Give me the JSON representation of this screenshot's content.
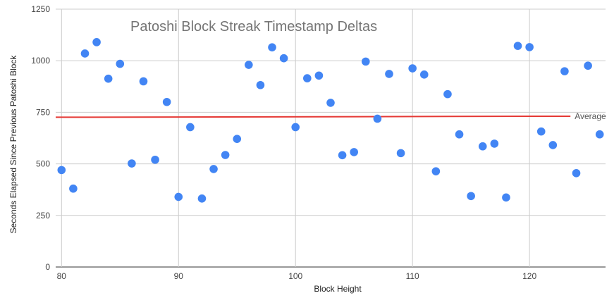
{
  "chart_data": {
    "type": "scatter",
    "title": "Patoshi Block Streak Timestamp Deltas",
    "xlabel": "Block Height",
    "ylabel": "Seconds Elapsed Since Previous Patoshi Block",
    "xlim": [
      79.5,
      126.5
    ],
    "ylim": [
      0,
      1250
    ],
    "xticks": [
      80,
      90,
      100,
      110,
      120
    ],
    "yticks": [
      0,
      250,
      500,
      750,
      1000,
      1250
    ],
    "grid": true,
    "colors": {
      "points": "#4285F4",
      "average": "#E53935",
      "grid": "#CCCCCC"
    },
    "series": [
      {
        "x": [
          80,
          81,
          82,
          83,
          84,
          85,
          86,
          87,
          88,
          89,
          90,
          91,
          92,
          93,
          94,
          95,
          96,
          97,
          98,
          99,
          100,
          101,
          102,
          103,
          104,
          105,
          106,
          107,
          108,
          109,
          110,
          111,
          112,
          113,
          114,
          115,
          116,
          117,
          118,
          119,
          120,
          121,
          122,
          123,
          124,
          125,
          126
        ],
        "y": [
          470,
          380,
          1035,
          1090,
          913,
          985,
          502,
          900,
          520,
          800,
          340,
          678,
          332,
          475,
          543,
          621,
          980,
          882,
          1065,
          1012,
          678,
          915,
          928,
          796,
          542,
          557,
          996,
          719,
          936,
          552,
          963,
          933,
          464,
          838,
          643,
          344,
          585,
          598,
          337,
          1072,
          1066,
          657,
          591,
          949,
          455,
          976,
          643
        ]
      }
    ],
    "average": {
      "label": "Average",
      "x": [
        79.5,
        123.5
      ],
      "y": [
        726,
        731
      ]
    }
  }
}
